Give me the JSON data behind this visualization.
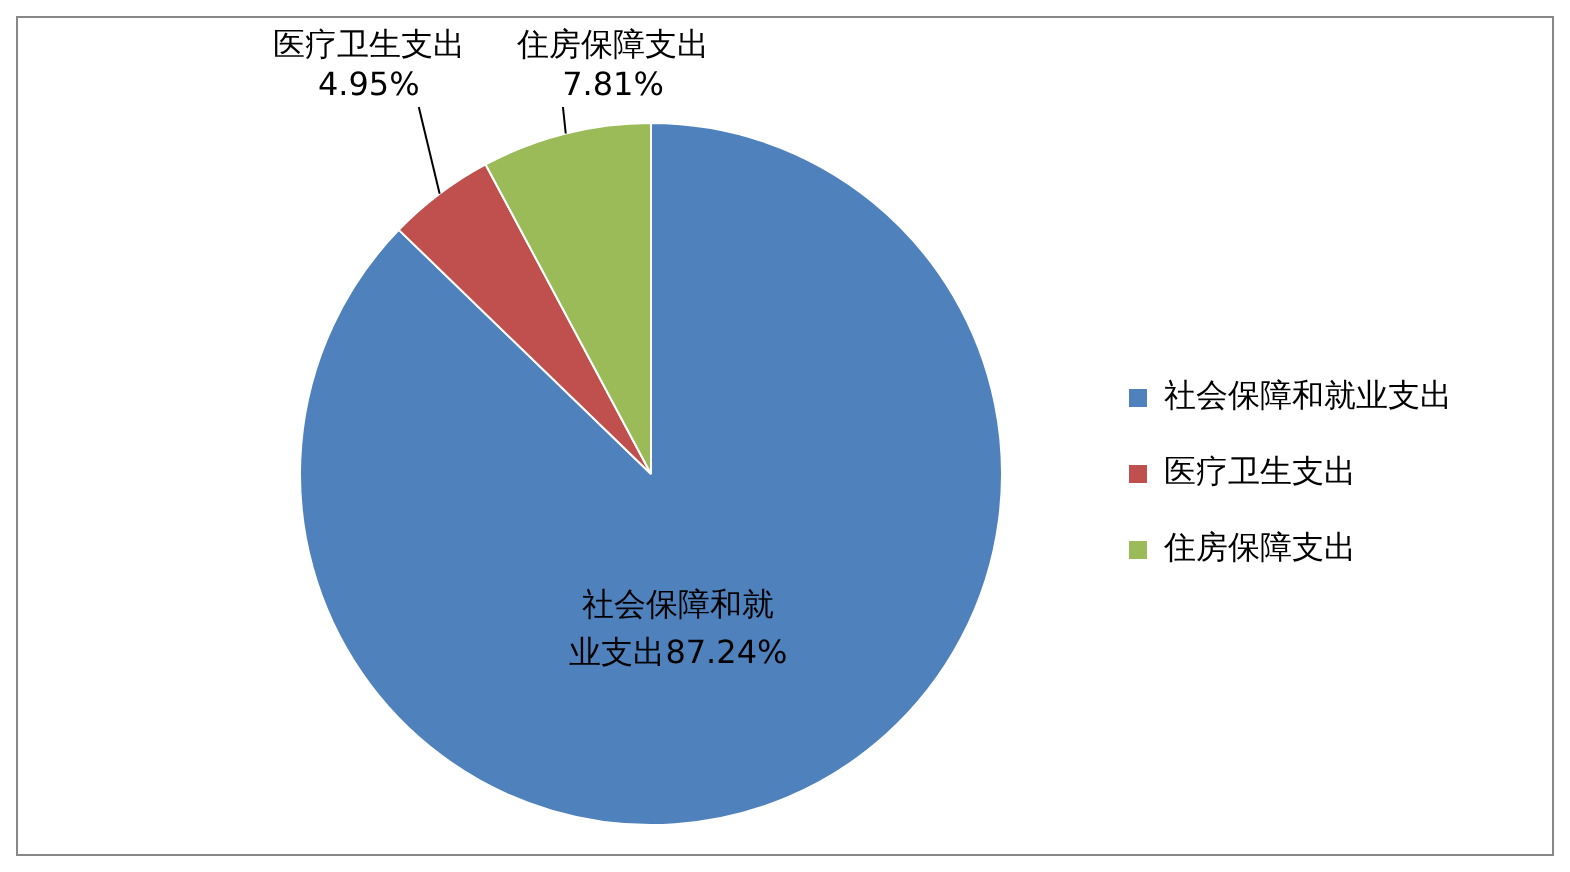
{
  "chart_data": {
    "type": "pie",
    "categories": [
      "社会保障和就业支出",
      "医疗卫生支出",
      "住房保障支出"
    ],
    "values": [
      87.24,
      4.95,
      7.81
    ],
    "value_labels": [
      "社会保障和就业支出87.24%",
      "医疗卫生支出 4.95%",
      "住房保障支出 7.81%"
    ],
    "colors": [
      "#4f81bd",
      "#c0504d",
      "#9bbb59"
    ],
    "legend": "right"
  }
}
